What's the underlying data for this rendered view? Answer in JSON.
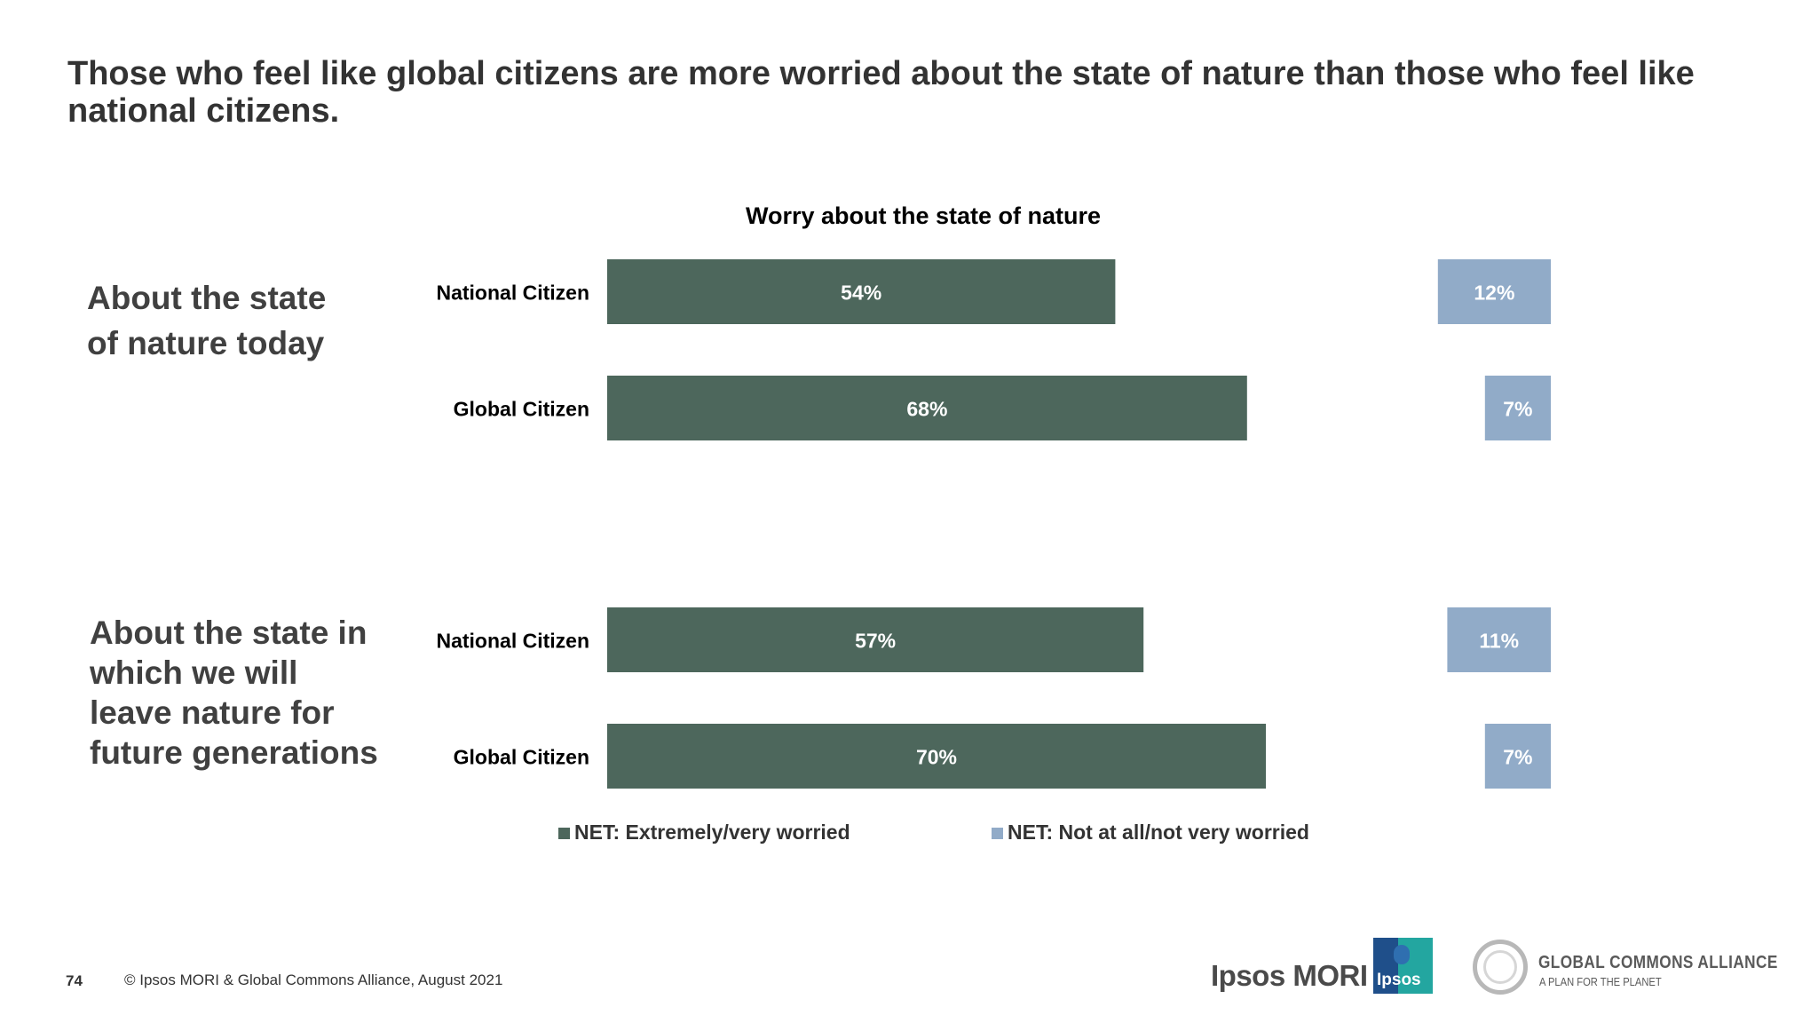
{
  "headline": "Those who feel like global citizens are more worried about the state of nature than those who feel like national citizens.",
  "section_labels": [
    [
      "About the state",
      "of nature today"
    ],
    [
      "About the state in",
      "which we will",
      "leave nature for",
      "future generations"
    ]
  ],
  "colors": {
    "worried": "#4d675c",
    "not_worried": "#91abc8",
    "text": "#333333"
  },
  "chart_data": {
    "type": "bar",
    "orientation": "horizontal",
    "title": "Worry about the state of nature",
    "groups": [
      {
        "name": "About the state of nature today",
        "categories": [
          "National Citizen",
          "Global Citizen"
        ]
      },
      {
        "name": "About the state in which we will leave nature for future generations",
        "categories": [
          "National Citizen",
          "Global Citizen"
        ]
      }
    ],
    "series": [
      {
        "name": "NET: Extremely/very worried",
        "values": [
          [
            54,
            68
          ],
          [
            57,
            70
          ]
        ],
        "labels": [
          [
            "54%",
            "68%"
          ],
          [
            "57%",
            "70%"
          ]
        ]
      },
      {
        "name": "NET: Not at all/not very worried",
        "values": [
          [
            12,
            7
          ],
          [
            11,
            7
          ]
        ],
        "labels": [
          [
            "12%",
            "7%"
          ],
          [
            "11%",
            "7%"
          ]
        ]
      }
    ],
    "unit": "%",
    "xlim": [
      0,
      100
    ],
    "legend_position": "bottom"
  },
  "footer": {
    "page_number": "74",
    "copyright": "© Ipsos MORI & Global Commons Alliance, August 2021"
  },
  "logos": {
    "ipsos_mori": "Ipsos MORI",
    "ipsos_badge": "Ipsos",
    "gca_name": "GLOBAL COMMONS ALLIANCE",
    "gca_tagline": "A PLAN FOR THE PLANET"
  }
}
